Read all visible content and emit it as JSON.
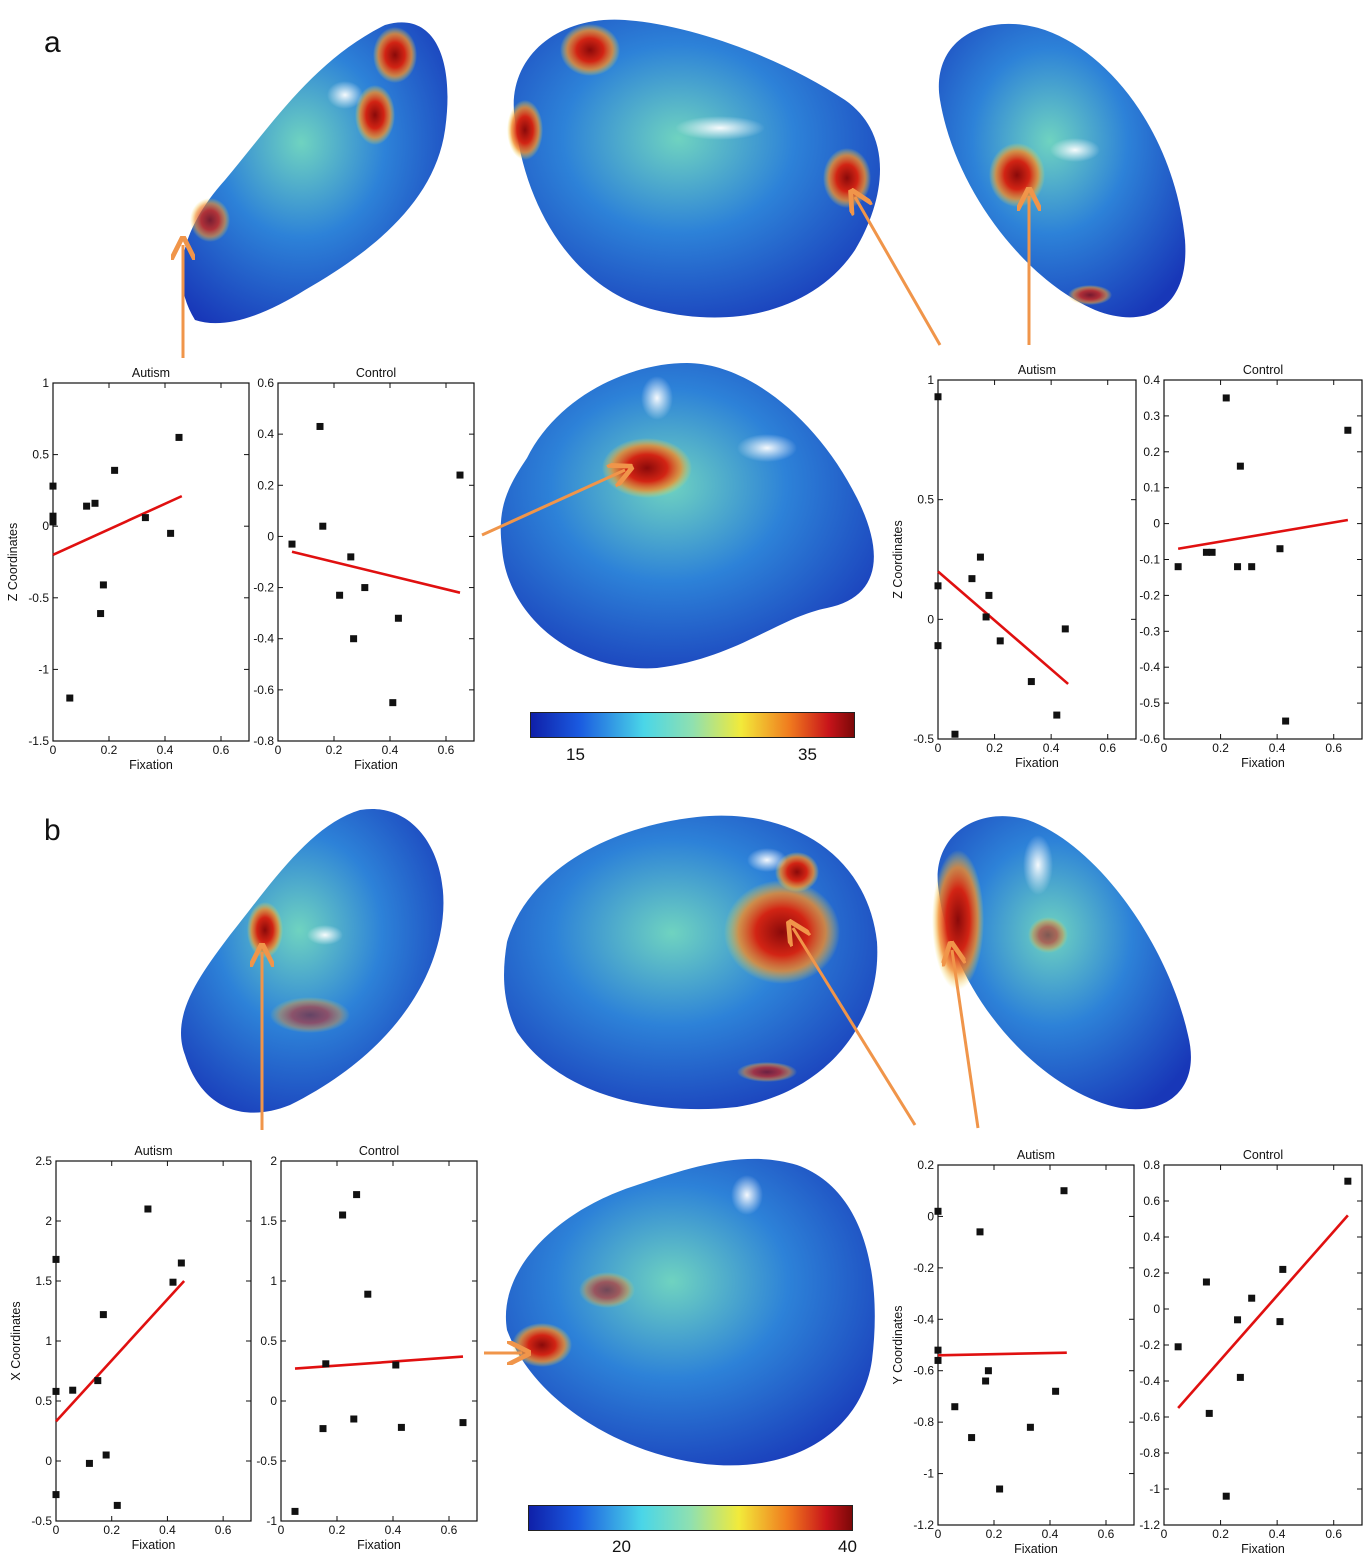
{
  "panels": [
    {
      "letter": "a"
    },
    {
      "letter": "b"
    }
  ],
  "colorbars": [
    {
      "min_label": "15",
      "max_label": "35"
    },
    {
      "min_label": "20",
      "max_label": "40"
    }
  ],
  "colors": {
    "arrow": "#f0954a",
    "fit_line": "#e01010",
    "surface_low": "#1c3fd0",
    "surface_mid": "#3fc3a0",
    "surface_high": "#b80f0f"
  },
  "chart_data": [
    {
      "id": "a1",
      "type": "scatter",
      "title": "Autism",
      "xlabel": "Fixation",
      "ylabel": "Z Coordinates",
      "xlim": [
        0,
        0.7
      ],
      "ylim": [
        -1.5,
        1
      ],
      "xticks": [
        0,
        0.2,
        0.4,
        0.6
      ],
      "xtick_labels": [
        "0",
        "0.2",
        "0.4",
        "0.6"
      ],
      "yticks": [
        -1.5,
        -1,
        -0.5,
        0,
        0.5,
        1
      ],
      "ytick_labels": [
        "-1.5",
        "-1",
        "-0.5",
        "0",
        "0.5",
        "1"
      ],
      "points": [
        [
          0.0,
          0.28
        ],
        [
          0.0,
          0.07
        ],
        [
          0.0,
          0.03
        ],
        [
          0.06,
          -1.2
        ],
        [
          0.12,
          0.14
        ],
        [
          0.15,
          0.16
        ],
        [
          0.17,
          -0.61
        ],
        [
          0.18,
          -0.41
        ],
        [
          0.22,
          0.39
        ],
        [
          0.33,
          0.06
        ],
        [
          0.42,
          -0.05
        ],
        [
          0.45,
          0.62
        ]
      ],
      "fit": [
        [
          0.0,
          -0.2
        ],
        [
          0.46,
          0.21
        ]
      ]
    },
    {
      "id": "a2",
      "type": "scatter",
      "title": "Control",
      "xlabel": "Fixation",
      "ylabel": "",
      "xlim": [
        0,
        0.7
      ],
      "ylim": [
        -0.8,
        0.6
      ],
      "xticks": [
        0,
        0.2,
        0.4,
        0.6
      ],
      "xtick_labels": [
        "0",
        "0.2",
        "0.4",
        "0.6"
      ],
      "yticks": [
        -0.8,
        -0.6,
        -0.4,
        -0.2,
        0,
        0.2,
        0.4,
        0.6
      ],
      "ytick_labels": [
        "-0.8",
        "-0.6",
        "-0.4",
        "-0.2",
        "0",
        "0.2",
        "0.4",
        "0.6"
      ],
      "points": [
        [
          0.05,
          -0.03
        ],
        [
          0.15,
          0.43
        ],
        [
          0.16,
          0.04
        ],
        [
          0.22,
          -0.23
        ],
        [
          0.26,
          -0.08
        ],
        [
          0.27,
          -0.4
        ],
        [
          0.31,
          -0.2
        ],
        [
          0.41,
          -0.65
        ],
        [
          0.43,
          -0.32
        ],
        [
          0.65,
          0.24
        ]
      ],
      "fit": [
        [
          0.05,
          -0.06
        ],
        [
          0.65,
          -0.22
        ]
      ]
    },
    {
      "id": "a3",
      "type": "scatter",
      "title": "Autism",
      "xlabel": "Fixation",
      "ylabel": "Z Coordinates",
      "xlim": [
        0,
        0.7
      ],
      "ylim": [
        -0.5,
        1
      ],
      "xticks": [
        0,
        0.2,
        0.4,
        0.6
      ],
      "xtick_labels": [
        "0",
        "0.2",
        "0.4",
        "0.6"
      ],
      "yticks": [
        -0.5,
        0,
        0.5,
        1
      ],
      "ytick_labels": [
        "-0.5",
        "0",
        "0.5",
        "1"
      ],
      "points": [
        [
          0.0,
          0.93
        ],
        [
          0.0,
          0.14
        ],
        [
          0.0,
          -0.11
        ],
        [
          0.06,
          -0.48
        ],
        [
          0.12,
          0.17
        ],
        [
          0.15,
          0.26
        ],
        [
          0.17,
          0.01
        ],
        [
          0.18,
          0.1
        ],
        [
          0.22,
          -0.09
        ],
        [
          0.33,
          -0.26
        ],
        [
          0.42,
          -0.4
        ],
        [
          0.45,
          -0.04
        ]
      ],
      "fit": [
        [
          0.0,
          0.2
        ],
        [
          0.46,
          -0.27
        ]
      ]
    },
    {
      "id": "a4",
      "type": "scatter",
      "title": "Control",
      "xlabel": "Fixation",
      "ylabel": "",
      "xlim": [
        0,
        0.7
      ],
      "ylim": [
        -0.6,
        0.4
      ],
      "xticks": [
        0,
        0.2,
        0.4,
        0.6
      ],
      "xtick_labels": [
        "0",
        "0.2",
        "0.4",
        "0.6"
      ],
      "yticks": [
        -0.6,
        -0.5,
        -0.4,
        -0.3,
        -0.2,
        -0.1,
        0,
        0.1,
        0.2,
        0.3,
        0.4
      ],
      "ytick_labels": [
        "-0.6",
        "-0.5",
        "-0.4",
        "-0.3",
        "-0.2",
        "-0.1",
        "0",
        "0.1",
        "0.2",
        "0.3",
        "0.4"
      ],
      "points": [
        [
          0.05,
          -0.12
        ],
        [
          0.15,
          -0.08
        ],
        [
          0.17,
          -0.08
        ],
        [
          0.22,
          0.35
        ],
        [
          0.26,
          -0.12
        ],
        [
          0.27,
          0.16
        ],
        [
          0.31,
          -0.12
        ],
        [
          0.41,
          -0.07
        ],
        [
          0.43,
          -0.55
        ],
        [
          0.65,
          0.26
        ]
      ],
      "fit": [
        [
          0.05,
          -0.07
        ],
        [
          0.65,
          0.01
        ]
      ]
    },
    {
      "id": "b1",
      "type": "scatter",
      "title": "Autism",
      "xlabel": "Fixation",
      "ylabel": "X Coordinates",
      "xlim": [
        0,
        0.7
      ],
      "ylim": [
        -0.5,
        2.5
      ],
      "xticks": [
        0,
        0.2,
        0.4,
        0.6
      ],
      "xtick_labels": [
        "0",
        "0.2",
        "0.4",
        "0.6"
      ],
      "yticks": [
        -0.5,
        0,
        0.5,
        1,
        1.5,
        2,
        2.5
      ],
      "ytick_labels": [
        "-0.5",
        "0",
        "0.5",
        "1",
        "1.5",
        "2",
        "2.5"
      ],
      "points": [
        [
          0.0,
          1.68
        ],
        [
          0.0,
          0.58
        ],
        [
          0.0,
          -0.28
        ],
        [
          0.06,
          0.59
        ],
        [
          0.12,
          -0.02
        ],
        [
          0.15,
          0.67
        ],
        [
          0.17,
          1.22
        ],
        [
          0.18,
          0.05
        ],
        [
          0.22,
          -0.37
        ],
        [
          0.33,
          2.1
        ],
        [
          0.42,
          1.49
        ],
        [
          0.45,
          1.65
        ]
      ],
      "fit": [
        [
          0.0,
          0.33
        ],
        [
          0.46,
          1.5
        ]
      ]
    },
    {
      "id": "b2",
      "type": "scatter",
      "title": "Control",
      "xlabel": "Fixation",
      "ylabel": "",
      "xlim": [
        0,
        0.7
      ],
      "ylim": [
        -1,
        2
      ],
      "xticks": [
        0,
        0.2,
        0.4,
        0.6
      ],
      "xtick_labels": [
        "0",
        "0.2",
        "0.4",
        "0.6"
      ],
      "yticks": [
        -1,
        -0.5,
        0,
        0.5,
        1,
        1.5,
        2
      ],
      "ytick_labels": [
        "-1",
        "-0.5",
        "0",
        "0.5",
        "1",
        "1.5",
        "2"
      ],
      "points": [
        [
          0.05,
          -0.92
        ],
        [
          0.15,
          -0.23
        ],
        [
          0.16,
          0.31
        ],
        [
          0.22,
          1.55
        ],
        [
          0.26,
          -0.15
        ],
        [
          0.27,
          1.72
        ],
        [
          0.31,
          0.89
        ],
        [
          0.41,
          0.3
        ],
        [
          0.43,
          -0.22
        ],
        [
          0.65,
          -0.18
        ]
      ],
      "fit": [
        [
          0.05,
          0.27
        ],
        [
          0.65,
          0.37
        ]
      ]
    },
    {
      "id": "b3",
      "type": "scatter",
      "title": "Autism",
      "xlabel": "Fixation",
      "ylabel": "Y Coordinates",
      "xlim": [
        0,
        0.7
      ],
      "ylim": [
        -1.2,
        0.2
      ],
      "xticks": [
        0,
        0.2,
        0.4,
        0.6
      ],
      "xtick_labels": [
        "0",
        "0.2",
        "0.4",
        "0.6"
      ],
      "yticks": [
        -1.2,
        -1,
        -0.8,
        -0.6,
        -0.4,
        -0.2,
        0,
        0.2
      ],
      "ytick_labels": [
        "-1.2",
        "-1",
        "-0.8",
        "-0.6",
        "-0.4",
        "-0.2",
        "0",
        "0.2"
      ],
      "points": [
        [
          0.0,
          0.02
        ],
        [
          0.0,
          -0.52
        ],
        [
          0.0,
          -0.56
        ],
        [
          0.06,
          -0.74
        ],
        [
          0.12,
          -0.86
        ],
        [
          0.15,
          -0.06
        ],
        [
          0.17,
          -0.64
        ],
        [
          0.18,
          -0.6
        ],
        [
          0.22,
          -1.06
        ],
        [
          0.33,
          -0.82
        ],
        [
          0.42,
          -0.68
        ],
        [
          0.45,
          0.1
        ]
      ],
      "fit": [
        [
          0.0,
          -0.54
        ],
        [
          0.46,
          -0.53
        ]
      ]
    },
    {
      "id": "b4",
      "type": "scatter",
      "title": "Control",
      "xlabel": "Fixation",
      "ylabel": "",
      "xlim": [
        0,
        0.7
      ],
      "ylim": [
        -1.2,
        0.8
      ],
      "xticks": [
        0,
        0.2,
        0.4,
        0.6
      ],
      "xtick_labels": [
        "0",
        "0.2",
        "0.4",
        "0.6"
      ],
      "yticks": [
        -1.2,
        -1,
        -0.8,
        -0.6,
        -0.4,
        -0.2,
        0,
        0.2,
        0.4,
        0.6,
        0.8
      ],
      "ytick_labels": [
        "-1.2",
        "-1",
        "-0.8",
        "-0.6",
        "-0.4",
        "-0.2",
        "0",
        "0.2",
        "0.4",
        "0.6",
        "0.8"
      ],
      "points": [
        [
          0.05,
          -0.21
        ],
        [
          0.15,
          0.15
        ],
        [
          0.16,
          -0.58
        ],
        [
          0.22,
          -1.04
        ],
        [
          0.26,
          -0.06
        ],
        [
          0.27,
          -0.38
        ],
        [
          0.31,
          0.06
        ],
        [
          0.41,
          -0.07
        ],
        [
          0.42,
          0.22
        ],
        [
          0.65,
          0.71
        ]
      ],
      "fit": [
        [
          0.05,
          -0.55
        ],
        [
          0.65,
          0.52
        ]
      ]
    }
  ]
}
